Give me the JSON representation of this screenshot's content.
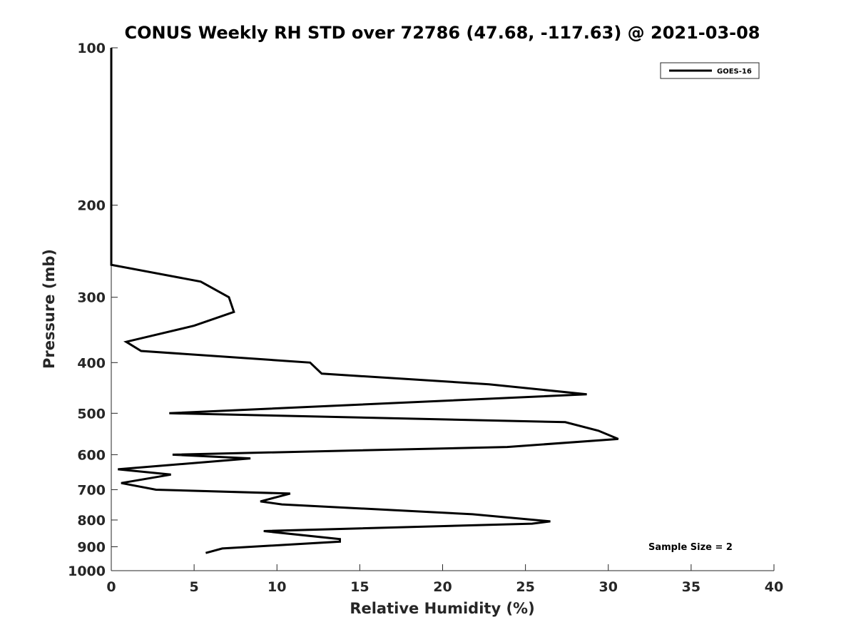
{
  "chart_data": {
    "type": "line",
    "title": "CONUS Weekly RH STD over 72786 (47.68, -117.63) @ 2021-03-08",
    "xlabel": "Relative Humidity (%)",
    "ylabel": "Pressure (mb)",
    "xlim": [
      0,
      40
    ],
    "ylim": [
      100,
      1000
    ],
    "y_scale": "log",
    "y_reversed": true,
    "x_ticks": [
      0,
      5,
      10,
      15,
      20,
      25,
      30,
      35,
      40
    ],
    "x_tick_labels": [
      "0",
      "5",
      "10",
      "15",
      "20",
      "25",
      "30",
      "35",
      "40"
    ],
    "y_ticks": [
      100,
      200,
      300,
      400,
      500,
      600,
      700,
      800,
      900,
      1000
    ],
    "y_tick_labels": [
      "100",
      "200",
      "300",
      "400",
      "500",
      "600",
      "700",
      "800",
      "900",
      "1000"
    ],
    "legend": {
      "location": "top-right",
      "entries": [
        "GOES-16"
      ]
    },
    "annotation": "Sample Size = 2",
    "series": [
      {
        "name": "GOES-16",
        "color": "#000000",
        "x": [
          0,
          0,
          0,
          0,
          0,
          0,
          5.4,
          7.1,
          7.4,
          5.0,
          0.9,
          1.8,
          12.0,
          12.7,
          22.8,
          28.7,
          3.5,
          27.4,
          29.4,
          30.6,
          23.9,
          3.7,
          8.4,
          0.4,
          3.6,
          0.6,
          2.7,
          10.8,
          9.0,
          10.3,
          21.8,
          26.5,
          25.4,
          9.2,
          13.8,
          13.8,
          6.7,
          5.7
        ],
        "y": [
          100,
          125,
          150,
          175,
          200,
          260,
          280,
          300,
          320,
          340,
          365,
          380,
          400,
          420,
          440,
          460,
          500,
          520,
          540,
          560,
          580,
          600,
          610,
          640,
          655,
          680,
          700,
          712,
          737,
          747,
          780,
          805,
          813,
          840,
          870,
          880,
          907,
          925
        ]
      }
    ]
  }
}
